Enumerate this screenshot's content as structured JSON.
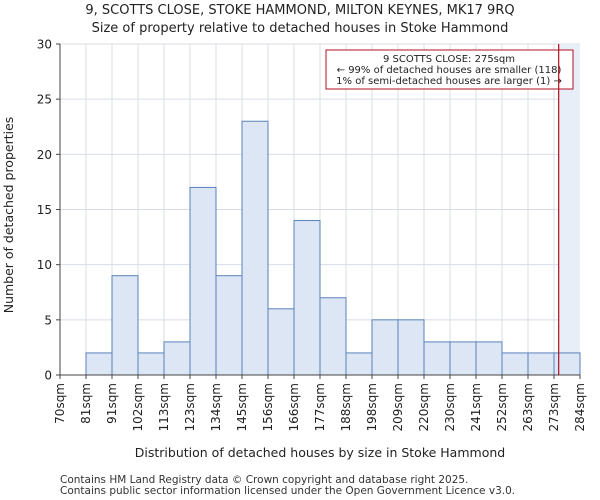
{
  "chart_data": {
    "type": "bar",
    "title": "9, SCOTTS CLOSE, STOKE HAMMOND, MILTON KEYNES, MK17 9RQ",
    "subtitle": "Size of property relative to detached houses in Stoke Hammond",
    "xlabel": "Distribution of detached houses by size in Stoke Hammond",
    "ylabel": "Number of detached properties",
    "ylim": [
      0,
      30
    ],
    "yticks": [
      0,
      5,
      10,
      15,
      20,
      25,
      30
    ],
    "bin_edges": [
      "70sqm",
      "81sqm",
      "91sqm",
      "102sqm",
      "113sqm",
      "123sqm",
      "134sqm",
      "145sqm",
      "156sqm",
      "166sqm",
      "177sqm",
      "188sqm",
      "198sqm",
      "209sqm",
      "220sqm",
      "230sqm",
      "241sqm",
      "252sqm",
      "263sqm",
      "273sqm",
      "284sqm"
    ],
    "values": [
      0,
      2,
      9,
      2,
      3,
      17,
      9,
      23,
      6,
      14,
      7,
      2,
      5,
      5,
      3,
      3,
      3,
      2,
      2,
      2
    ],
    "marker": {
      "value_sqm": 275,
      "position_bins": 19.18,
      "line1": "9 SCOTTS CLOSE: 275sqm",
      "line2": "← 99% of detached houses are smaller (118)",
      "line3": "1% of semi-detached houses are larger (1) →"
    },
    "colors": {
      "bar_fill": "#dce6f4",
      "bar_stroke": "#5a82b8",
      "marker": "#b01020",
      "highlight": "#e8eef8",
      "grid": "#d8dde6"
    },
    "grid": true
  },
  "footer": {
    "line1": "Contains HM Land Registry data © Crown copyright and database right 2025.",
    "line2": "Contains public sector information licensed under the Open Government Licence v3.0."
  }
}
